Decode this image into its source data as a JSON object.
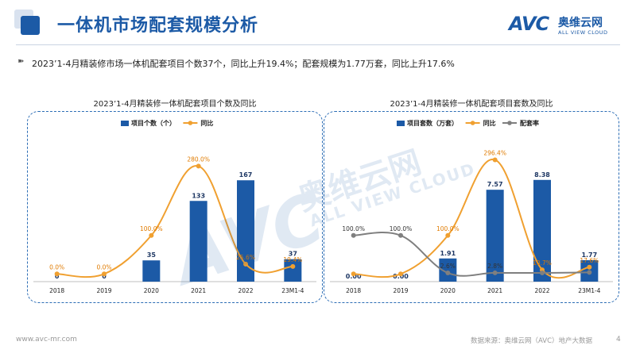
{
  "header": {
    "title": "一体机市场配套规模分析",
    "logo_mark": "AVC",
    "logo_cn": "奥维云网",
    "logo_en": "ALL VIEW CLOUD"
  },
  "summary": {
    "bullet": "➽",
    "text": "2023’1-4月精装修市场一体机配套项目个数37个，同比上升19.4%；配套规模为1.77万套，同比上升17.6%"
  },
  "watermark": {
    "mark": "AVC",
    "cn": "奥维云网",
    "en": "ALL VIEW CLOUD"
  },
  "footer": {
    "url": "www.avc-mr.com",
    "source": "数据来源：奥维云网（AVC）地产大数据",
    "page": "4"
  },
  "colors": {
    "bar": "#1c5aa6",
    "yoy": "#f0a030",
    "rate": "#7f7f7f",
    "accent": "#1c5aa6"
  },
  "chart_data": [
    {
      "type": "bar",
      "title": "2023’1-4月精装修一体机配套项目个数及同比",
      "categories": [
        "2018",
        "2019",
        "2020",
        "2021",
        "2022",
        "23M1-4"
      ],
      "series": [
        {
          "name": "项目个数（个）",
          "type": "bar",
          "values": [
            0,
            0,
            35,
            133,
            167,
            37
          ],
          "labels": [
            "0",
            "0",
            "35",
            "133",
            "167",
            "37"
          ]
        },
        {
          "name": "同比",
          "type": "line",
          "values": [
            0,
            0,
            100.0,
            280.0,
            25.6,
            19.4
          ],
          "labels": [
            "0.0%",
            "0.0%",
            "100.0%",
            "280.0%",
            "25.6%",
            "19.4%"
          ]
        }
      ],
      "bar_max": 200,
      "line_range": [
        -20,
        320
      ],
      "legend": "top-center",
      "grid": false
    },
    {
      "type": "bar",
      "title": "2023’1-4月精装修一体机配套项目套数及同比",
      "categories": [
        "2018",
        "2019",
        "2020",
        "2021",
        "2022",
        "23M1-4"
      ],
      "series": [
        {
          "name": "项目套数（万套）",
          "type": "bar",
          "values": [
            0.0,
            0.0,
            1.91,
            7.57,
            8.38,
            1.77
          ],
          "labels": [
            "0.00",
            "0.00",
            "1.91",
            "7.57",
            "8.38",
            "1.77"
          ]
        },
        {
          "name": "同比",
          "type": "line",
          "values": [
            0,
            0,
            100.0,
            296.4,
            10.7,
            17.6
          ],
          "labels": [
            "",
            "",
            "100.0%",
            "296.4%",
            "10.7%",
            "17.6%"
          ]
        },
        {
          "name": "配套率",
          "type": "line",
          "values": [
            100.0,
            100.0,
            2.6,
            2.8,
            2.7,
            4.0
          ],
          "labels": [
            "100.0%",
            "100.0%",
            "2.6%",
            "2.8%",
            "",
            ""
          ]
        }
      ],
      "bar_max": 10,
      "line_range": [
        -20,
        320
      ],
      "legend": "top-center",
      "grid": false
    }
  ]
}
